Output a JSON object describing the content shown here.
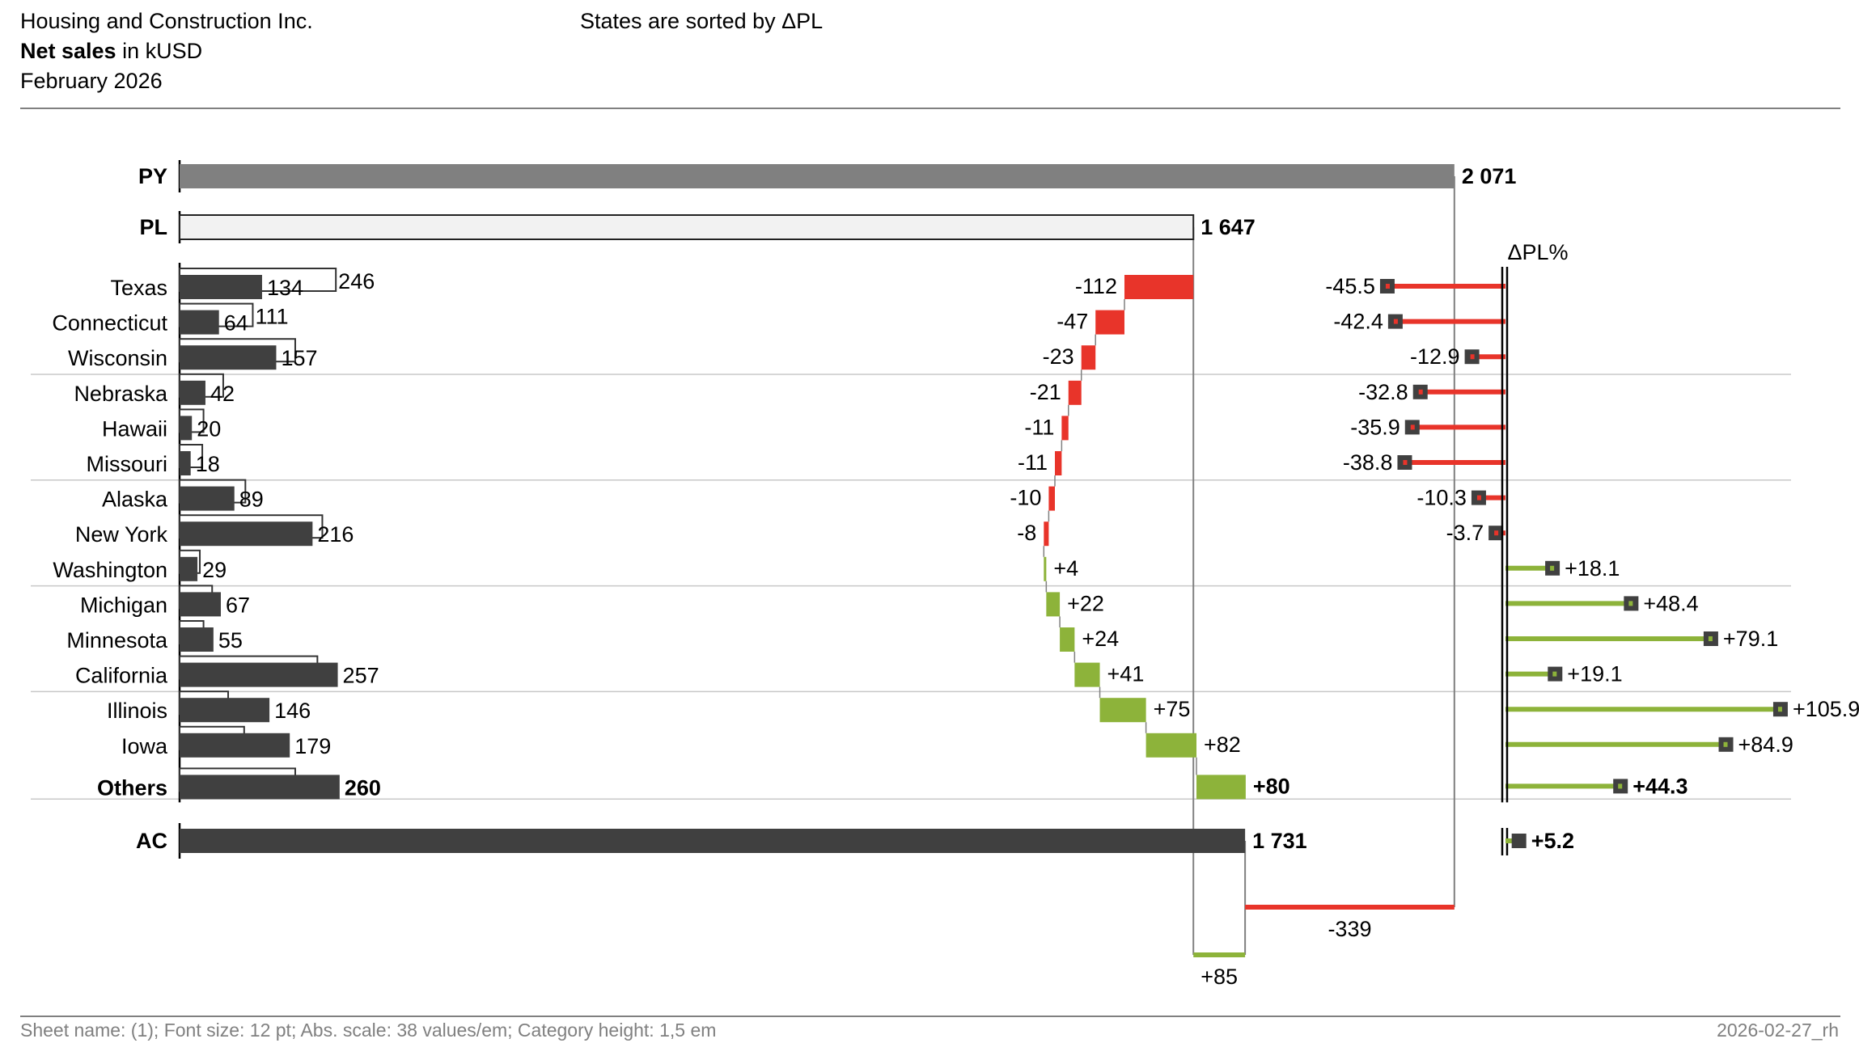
{
  "header": {
    "company": "Housing and Construction Inc.",
    "measure_bold": "Net sales",
    "measure_unit": " in kUSD",
    "period": "February 2026",
    "sort_note": "States are sorted by ΔPL"
  },
  "footer": {
    "info": "Sheet name: (1); Font size: 12 pt; Abs. scale: 38 values/em; Category height: 1,5 em",
    "stamp": "2026-02-27_rh"
  },
  "colors": {
    "ac": "#404040",
    "py": "#808080",
    "pl_fill": "#f2f2f2",
    "positive": "#8db33a",
    "negative": "#e8342a",
    "grid": "#c8c8c8"
  },
  "chart_data": {
    "type": "bar",
    "title": "Net sales in kUSD",
    "unit": "kUSD",
    "totals": {
      "PY": {
        "label": "PY",
        "value": 2071,
        "value_label": "2 071"
      },
      "PL": {
        "label": "PL",
        "value": 1647,
        "value_label": "1 647"
      },
      "AC": {
        "label": "AC",
        "value": 1731,
        "value_label": "1 731"
      }
    },
    "categories": [
      "Texas",
      "Connecticut",
      "Wisconsin",
      "Nebraska",
      "Hawaii",
      "Missouri",
      "Alaska",
      "New York",
      "Washington",
      "Michigan",
      "Minnesota",
      "California",
      "Illinois",
      "Iowa",
      "Others"
    ],
    "series": [
      {
        "name": "AC",
        "values": [
          134,
          64,
          157,
          42,
          20,
          18,
          89,
          216,
          29,
          67,
          55,
          257,
          146,
          179,
          260
        ]
      },
      {
        "name": "PL",
        "values": [
          246,
          111,
          180,
          63,
          31,
          29,
          99,
          224,
          25,
          45,
          31,
          216,
          71,
          97,
          180
        ]
      },
      {
        "name": "ΔPL",
        "values": [
          -112,
          -47,
          -23,
          -21,
          -11,
          -11,
          -10,
          -8,
          4,
          22,
          24,
          41,
          75,
          82,
          80
        ]
      },
      {
        "name": "ΔPL%",
        "values": [
          -45.5,
          -42.4,
          -12.9,
          -32.8,
          -35.9,
          -38.8,
          -10.3,
          -3.7,
          18.1,
          48.4,
          79.1,
          19.1,
          105.9,
          84.9,
          44.3
        ]
      }
    ],
    "ac_labels": [
      "134",
      "64",
      "157",
      "42",
      "20",
      "18",
      "89",
      "216",
      "29",
      "67",
      "55",
      "257",
      "146",
      "179",
      "260"
    ],
    "pl_labels": [
      "246",
      "111",
      "",
      "",
      "",
      "",
      "",
      "",
      "",
      "",
      "",
      "",
      "",
      "",
      ""
    ],
    "delta_labels": [
      "-112",
      "-47",
      "-23",
      "-21",
      "-11",
      "-11",
      "-10",
      "-8",
      "+4",
      "+22",
      "+24",
      "+41",
      "+75",
      "+82",
      "+80"
    ],
    "delta_pct_labels": [
      "-45.5",
      "-42.4",
      "-12.9",
      "-32.8",
      "-35.9",
      "-38.8",
      "-10.3",
      "-3.7",
      "+18.1",
      "+48.4",
      "+79.1",
      "+19.1",
      "+105.9",
      "+84.9",
      "+44.3"
    ],
    "delta_pct_header": "ΔPL%",
    "total_delta_pct": {
      "value": 5.2,
      "label": "+5.2"
    },
    "variance_to_py": {
      "value": -339,
      "label": "-339"
    },
    "variance_to_pl": {
      "value": 85,
      "label": "+85"
    }
  }
}
